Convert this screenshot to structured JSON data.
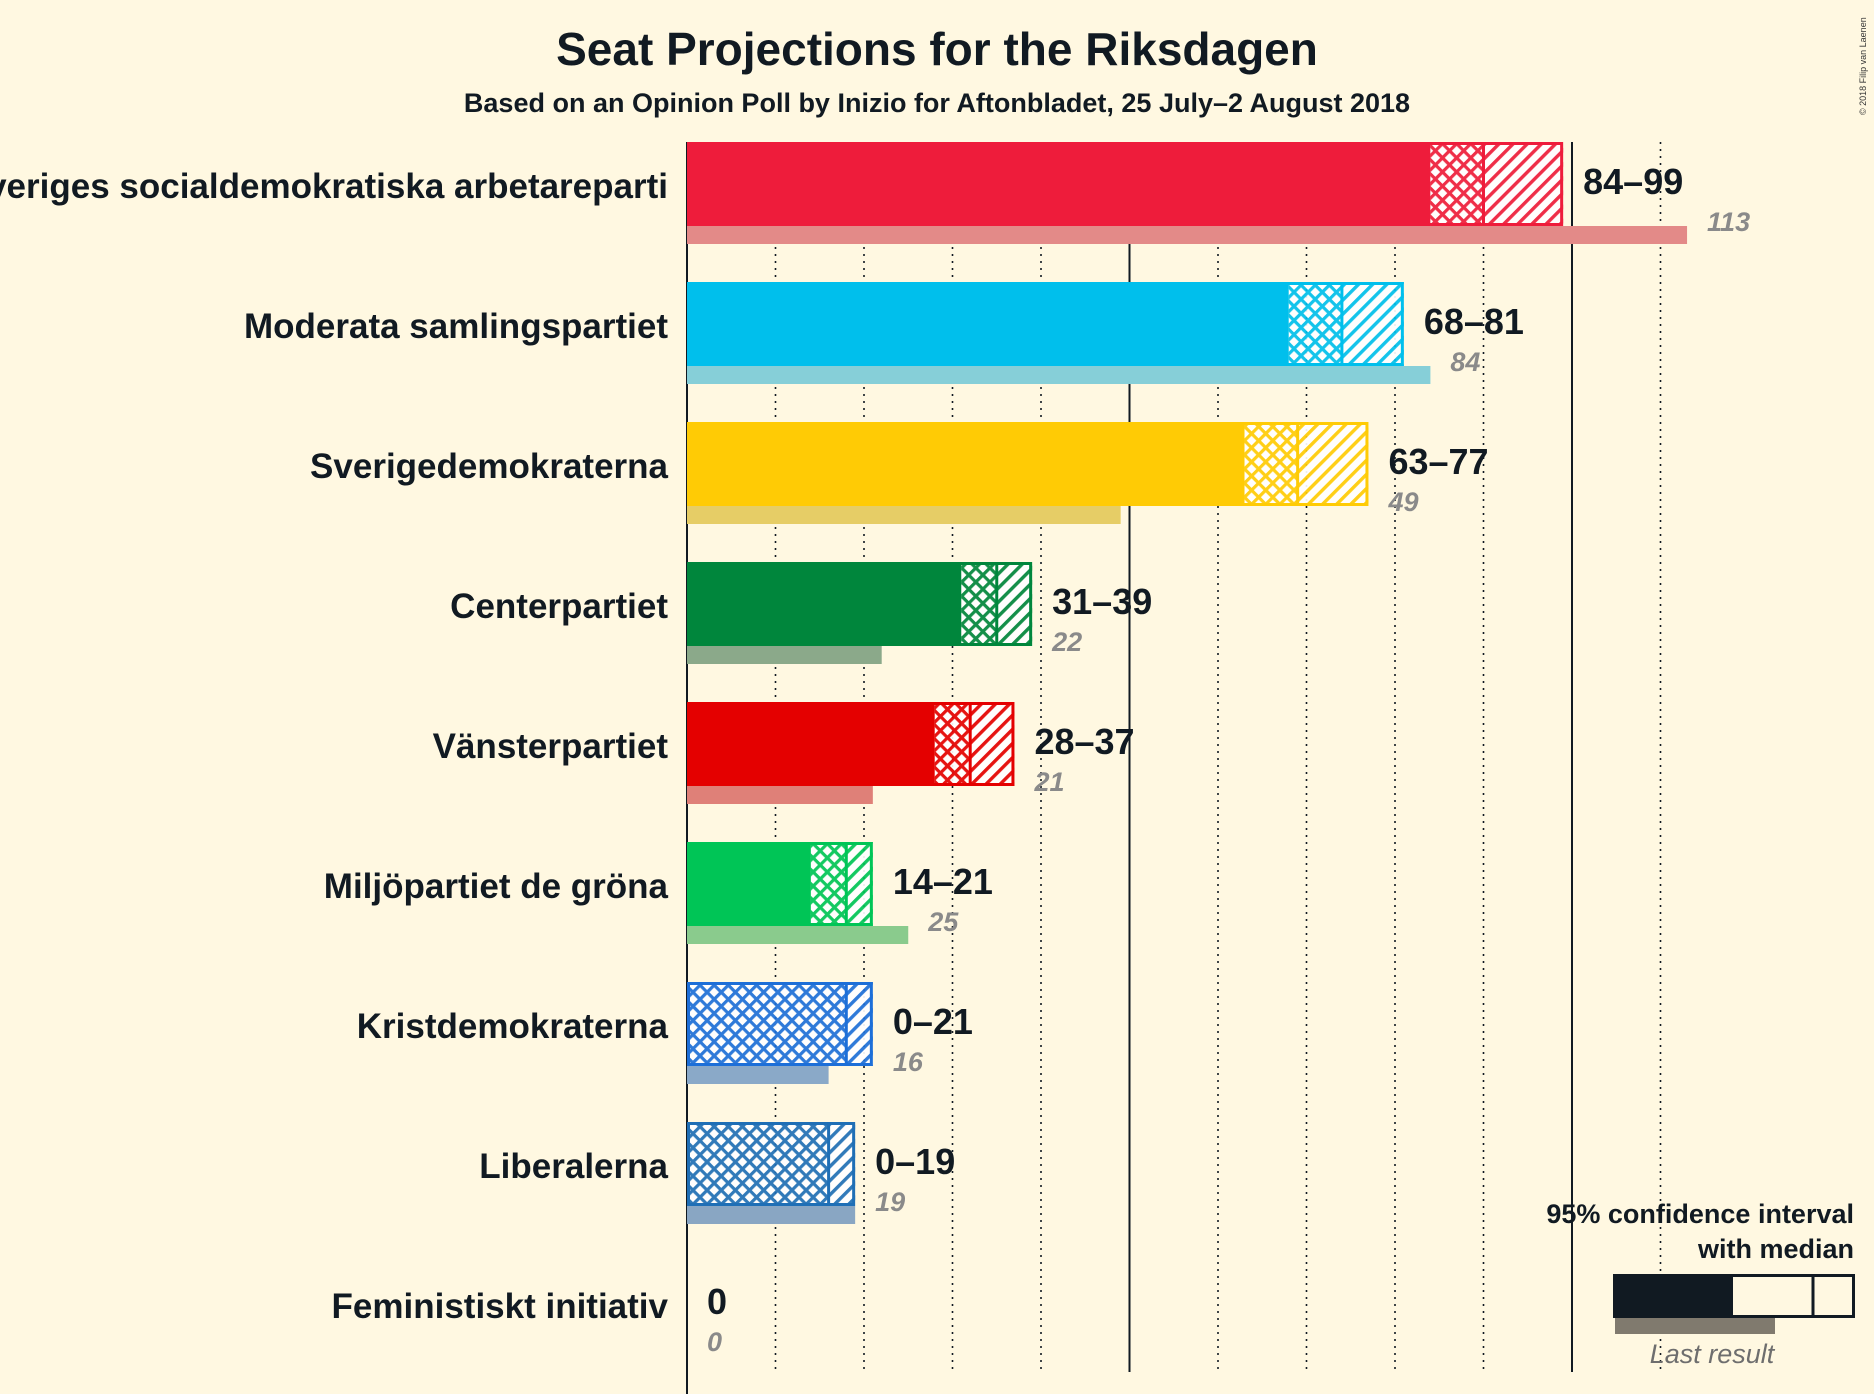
{
  "chart_data": {
    "type": "bar",
    "title": "Seat Projections for the Riksdagen",
    "subtitle": "Based on an Opinion Poll by Inizio for Aftonbladet, 25 July–2 August 2018",
    "copyright": "© 2018 Filip van Laenen",
    "xlim": [
      0,
      113
    ],
    "gridlines": [
      10,
      20,
      30,
      40,
      50,
      60,
      70,
      80,
      90,
      100,
      110
    ],
    "majority_marks": [
      50,
      100
    ],
    "parties": [
      {
        "name": "Sveriges socialdemokratiska arbetareparti",
        "low": 84,
        "median": 90,
        "high": 99,
        "last": 113,
        "range_label": "84–99",
        "last_label": "113",
        "color": "#ee1c3b",
        "last_color": "#e38a88"
      },
      {
        "name": "Moderata samlingspartiet",
        "low": 68,
        "median": 74,
        "high": 81,
        "last": 84,
        "range_label": "68–81",
        "last_label": "84",
        "color": "#00bfec",
        "last_color": "#86cfd8"
      },
      {
        "name": "Sverigedemokraterna",
        "low": 63,
        "median": 69,
        "high": 77,
        "last": 49,
        "range_label": "63–77",
        "last_label": "49",
        "color": "#ffcb05",
        "last_color": "#e6cd66"
      },
      {
        "name": "Centerpartiet",
        "low": 31,
        "median": 35,
        "high": 39,
        "last": 22,
        "range_label": "31–39",
        "last_label": "22",
        "color": "#00863c",
        "last_color": "#8ba98a"
      },
      {
        "name": "Vänsterpartiet",
        "low": 28,
        "median": 32,
        "high": 37,
        "last": 21,
        "range_label": "28–37",
        "last_label": "21",
        "color": "#e40000",
        "last_color": "#df8078"
      },
      {
        "name": "Miljöpartiet de gröna",
        "low": 14,
        "median": 18,
        "high": 21,
        "last": 25,
        "range_label": "14–21",
        "last_label": "25",
        "color": "#00c556",
        "last_color": "#8acb8d"
      },
      {
        "name": "Kristdemokraterna",
        "low": 0,
        "median": 18,
        "high": 21,
        "last": 16,
        "range_label": "0–21",
        "last_label": "16",
        "color": "#1d6fd8",
        "last_color": "#8aa9c8"
      },
      {
        "name": "Liberalerna",
        "low": 0,
        "median": 16,
        "high": 19,
        "last": 19,
        "range_label": "0–19",
        "last_label": "19",
        "color": "#1f6fb6",
        "last_color": "#89a6c3"
      },
      {
        "name": "Feministiskt initiativ",
        "low": 0,
        "median": 0,
        "high": 0,
        "last": 0,
        "range_label": "0",
        "last_label": "0",
        "color": "#cd5a9c",
        "last_color": "#cd5a9c"
      }
    ],
    "legend": {
      "line1": "95% confidence interval",
      "line2": "with median",
      "last_result": "Last result",
      "placement": "bottom-right"
    }
  }
}
